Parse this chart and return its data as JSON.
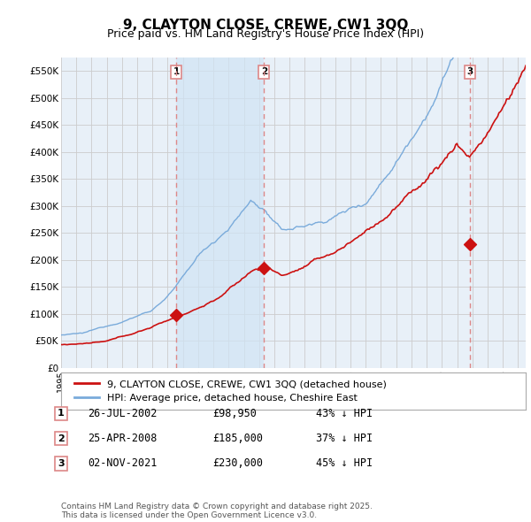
{
  "title": "9, CLAYTON CLOSE, CREWE, CW1 3QQ",
  "subtitle": "Price paid vs. HM Land Registry's House Price Index (HPI)",
  "ylim": [
    0,
    575000
  ],
  "xlim_start": 1995.0,
  "xlim_end": 2025.5,
  "sale_dates": [
    2002.57,
    2008.32,
    2021.84
  ],
  "sale_prices": [
    98950,
    185000,
    230000
  ],
  "sale_labels": [
    "1",
    "2",
    "3"
  ],
  "sale_date_strs": [
    "26-JUL-2002",
    "25-APR-2008",
    "02-NOV-2021"
  ],
  "sale_price_strs": [
    "£98,950",
    "£185,000",
    "£230,000"
  ],
  "sale_pct_strs": [
    "43% ↓ HPI",
    "37% ↓ HPI",
    "45% ↓ HPI"
  ],
  "hpi_color": "#7aabdb",
  "price_color": "#cc1111",
  "vline_color": "#dd8888",
  "grid_color": "#cccccc",
  "background_color": "#e8f0f8",
  "shade_color": "#d0e4f4",
  "legend_label_red": "9, CLAYTON CLOSE, CREWE, CW1 3QQ (detached house)",
  "legend_label_blue": "HPI: Average price, detached house, Cheshire East",
  "footer": "Contains HM Land Registry data © Crown copyright and database right 2025.\nThis data is licensed under the Open Government Licence v3.0."
}
